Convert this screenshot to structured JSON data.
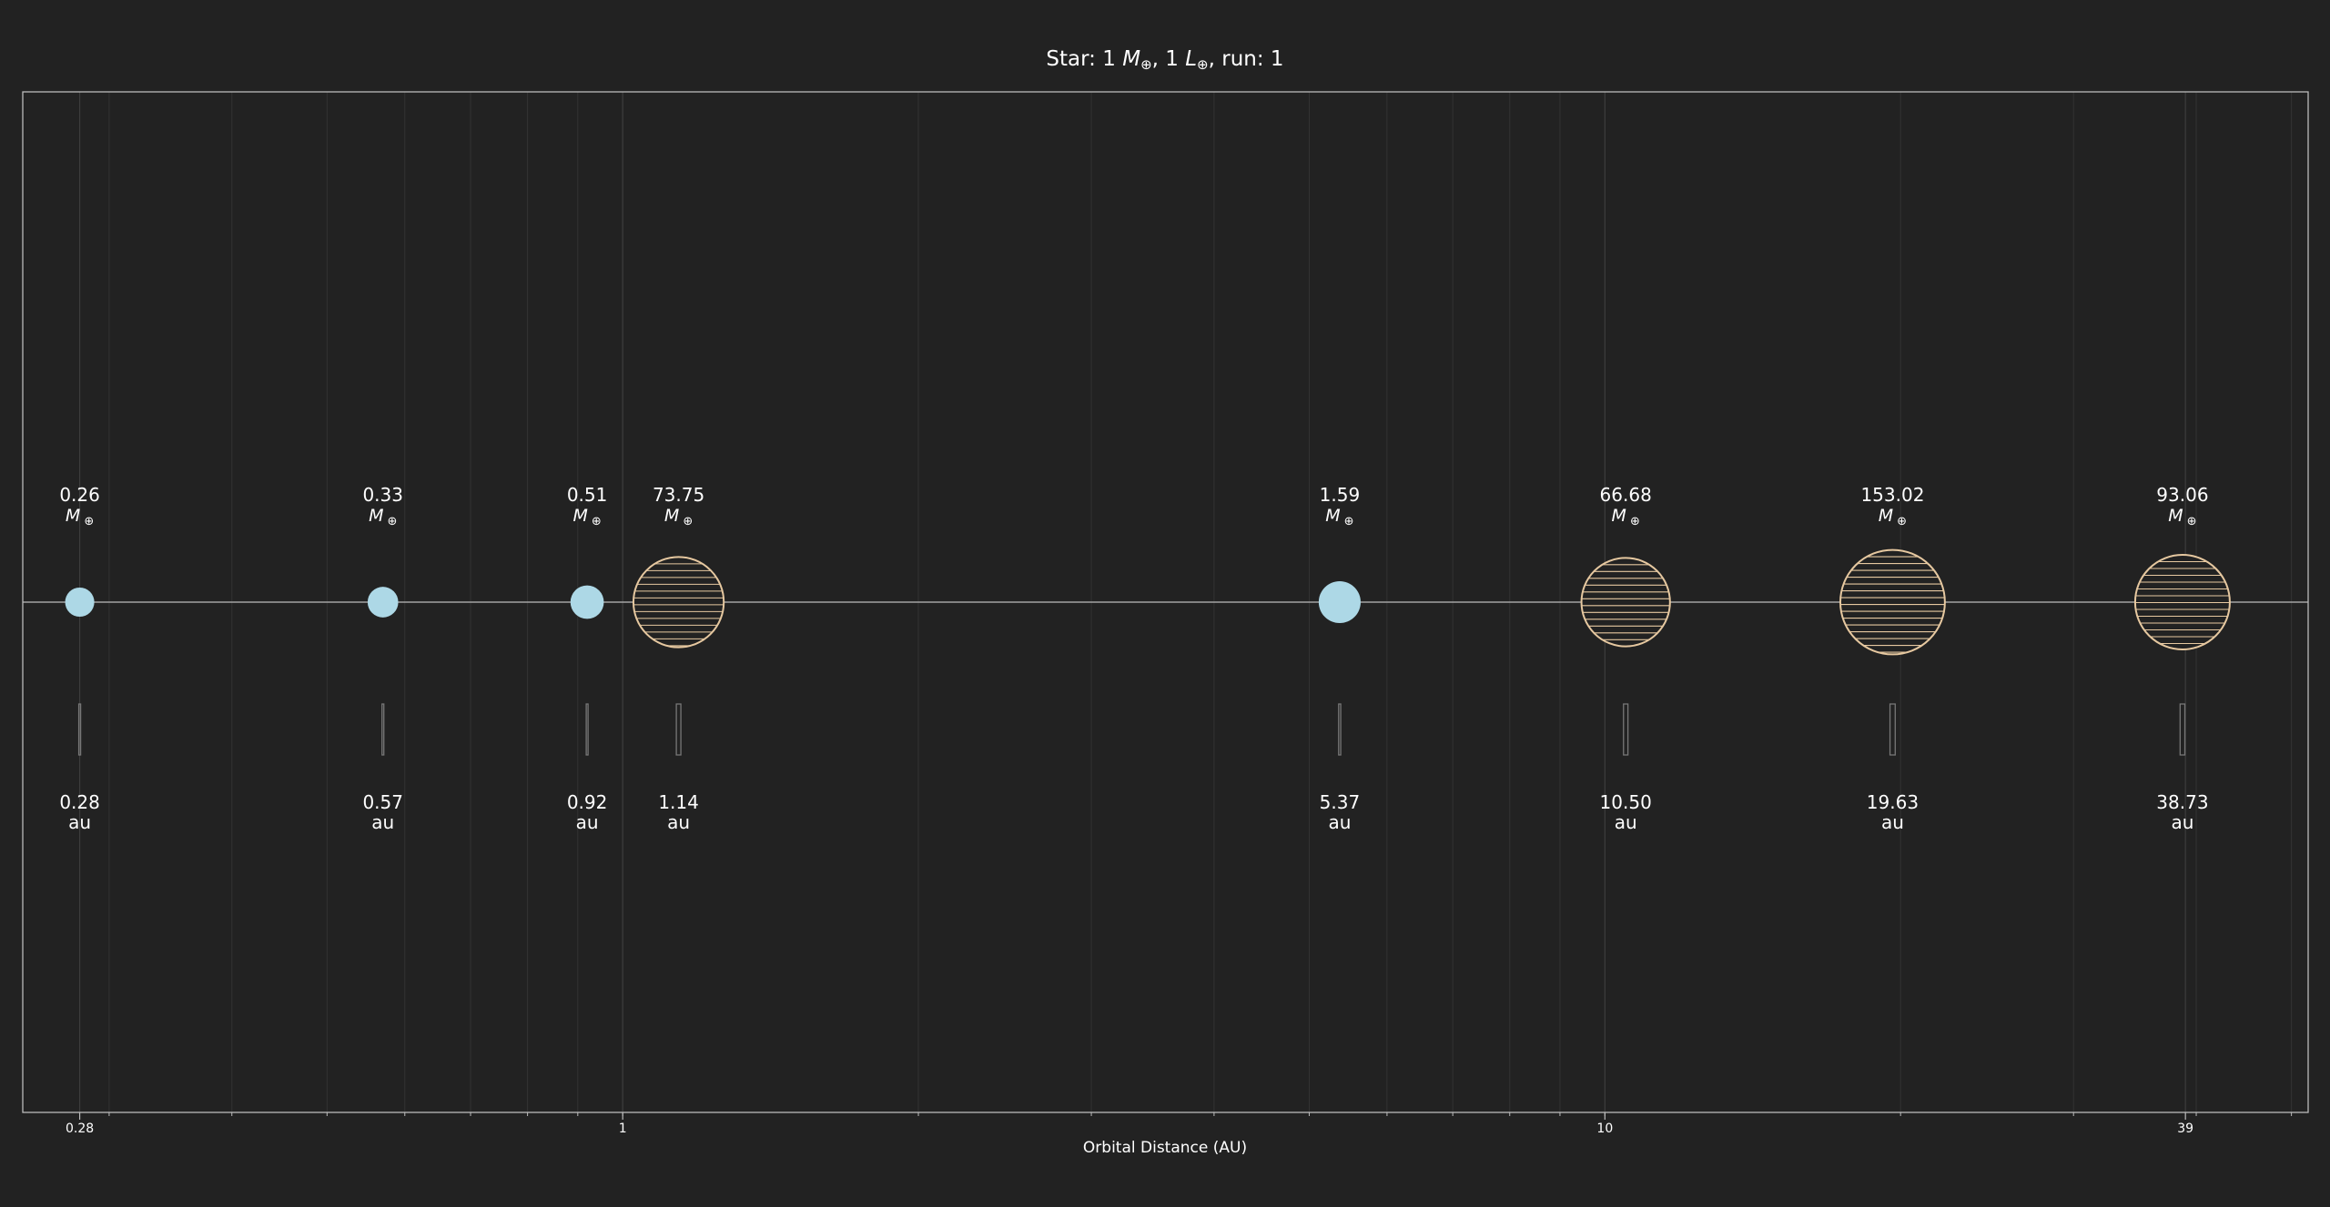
{
  "chart_data": {
    "type": "scatter",
    "title_parts": {
      "prefix": "Star: 1 ",
      "mass_symbol": "M",
      "sub1": "⊕",
      "mid": ", 1 ",
      "lum_symbol": "L",
      "sub2": "⊕",
      "suffix": ", run: 1"
    },
    "xlabel": "Orbital Distance (AU)",
    "x_scale": "log",
    "xlim": [
      0.245,
      52
    ],
    "x_ticks": [
      {
        "value": 0.28,
        "label": "0.28"
      },
      {
        "value": 1,
        "label": "1"
      },
      {
        "value": 10,
        "label": "10"
      },
      {
        "value": 39,
        "label": "39"
      }
    ],
    "grid": true,
    "mass_unit_symbol": "M",
    "mass_unit_sub": "⊕",
    "distance_unit": "au",
    "colors": {
      "background": "#222222",
      "rocky": "#add8e6",
      "gas_giant_edge": "#e6c8a0",
      "axis": "#bbbbbb",
      "grid": "#333333",
      "orbit_bar": "#777777"
    },
    "planets": [
      {
        "distance": 0.28,
        "mass": 0.26,
        "mass_label": "0.26",
        "dist_label": "0.28",
        "kind": "rocky"
      },
      {
        "distance": 0.57,
        "mass": 0.33,
        "mass_label": "0.33",
        "dist_label": "0.57",
        "kind": "rocky"
      },
      {
        "distance": 0.92,
        "mass": 0.51,
        "mass_label": "0.51",
        "dist_label": "0.92",
        "kind": "rocky"
      },
      {
        "distance": 1.14,
        "mass": 73.75,
        "mass_label": "73.75",
        "dist_label": "1.14",
        "kind": "gas"
      },
      {
        "distance": 5.37,
        "mass": 1.59,
        "mass_label": "1.59",
        "dist_label": "5.37",
        "kind": "rocky"
      },
      {
        "distance": 10.5,
        "mass": 66.68,
        "mass_label": "66.68",
        "dist_label": "10.50",
        "kind": "gas"
      },
      {
        "distance": 19.63,
        "mass": 153.02,
        "mass_label": "153.02",
        "dist_label": "19.63",
        "kind": "gas"
      },
      {
        "distance": 38.73,
        "mass": 93.06,
        "mass_label": "93.06",
        "dist_label": "38.73",
        "kind": "gas"
      }
    ]
  }
}
